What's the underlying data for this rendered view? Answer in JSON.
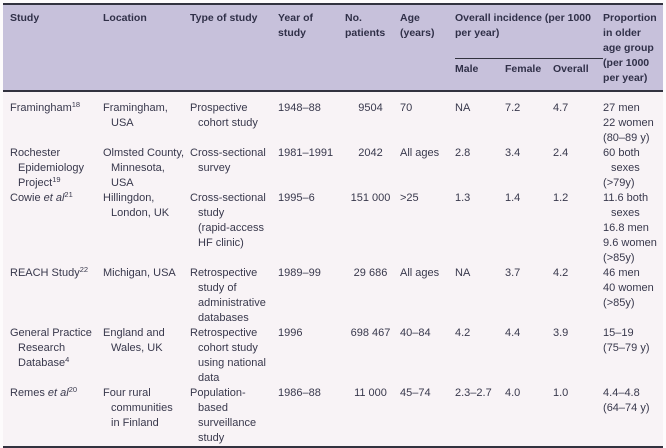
{
  "colors": {
    "header_background": "#c7c1db",
    "body_background": "#f8f3f6",
    "rule": "#32323f",
    "text": "#38384c"
  },
  "table": {
    "headers": {
      "study": "Study",
      "location": "Location",
      "type": "Type of study",
      "year": "Year of\nstudy",
      "patients": "No.\npatients",
      "age": "Age\n(years)",
      "incidence_group": "Overall incidence (per 1000\nper year)",
      "male": "Male",
      "female": "Female",
      "overall": "Overall",
      "proportion": "Proportion\nin older\nage group\n(per 1000\nper year)"
    },
    "rows": [
      {
        "study": {
          "name": "Framingham",
          "italic": "",
          "ref": "18"
        },
        "location": "Framingham,\nUSA",
        "type": "Prospective\ncohort study",
        "year": "1948–88",
        "patients": "9504",
        "age": "70",
        "male": "NA",
        "female": "7.2",
        "overall": "4.7",
        "proportion": [
          "27 men",
          "22 women",
          "(80–89 y)"
        ]
      },
      {
        "study": {
          "name": "Rochester\nEpidemiology\nProject",
          "italic": "",
          "ref": "19"
        },
        "location": "Olmsted County,\nMinnesota,\nUSA",
        "type": "Cross-sectional\nsurvey",
        "year": "1981–1991",
        "patients": "2042",
        "age": "All ages",
        "male": "2.8",
        "female": "3.4",
        "overall": "2.4",
        "proportion": [
          "60 both sexes",
          "(>79y)"
        ]
      },
      {
        "study": {
          "name": "Cowie ",
          "italic": "et al",
          "ref": "21"
        },
        "location": "Hillingdon,\nLondon, UK",
        "type": "Cross-sectional\nstudy\n(rapid-access\nHF clinic)",
        "year": "1995–6",
        "patients": "151 000",
        "age": ">25",
        "male": "1.3",
        "female": "1.4",
        "overall": "1.2",
        "proportion": [
          "11.6 both sexes",
          "16.8 men",
          "9.6 women",
          "(>85y)"
        ]
      },
      {
        "study": {
          "name": "REACH Study",
          "italic": "",
          "ref": "22"
        },
        "location": "Michigan, USA",
        "type": "Retrospective\nstudy of\nadministrative\ndatabases",
        "year": "1989–99",
        "patients": "29 686",
        "age": "All ages",
        "male": "NA",
        "female": "3.7",
        "overall": "4.2",
        "proportion": [
          "46 men",
          "40 women",
          "(>85y)"
        ]
      },
      {
        "study": {
          "name": "General Practice\nResearch\nDatabase",
          "italic": "",
          "ref": "4"
        },
        "location": "England and\nWales, UK",
        "type": "Retrospective\ncohort study\nusing national\ndata",
        "year": "1996",
        "patients": "698 467",
        "age": "40–84",
        "male": "4.2",
        "female": "4.4",
        "overall": "3.9",
        "proportion": [
          "15–19",
          "(75–79 y)"
        ]
      },
      {
        "study": {
          "name": "Remes ",
          "italic": "et al",
          "ref": "20"
        },
        "location": "Four rural\ncommunities\nin Finland",
        "type": "Population-\nbased\nsurveillance\nstudy",
        "year": "1986–88",
        "patients": "11 000",
        "age": "45–74",
        "male": "2.3–2.7",
        "female": "4.0",
        "overall": "1.0",
        "proportion": [
          "4.4–4.8",
          "(64–74 y)"
        ]
      }
    ]
  }
}
